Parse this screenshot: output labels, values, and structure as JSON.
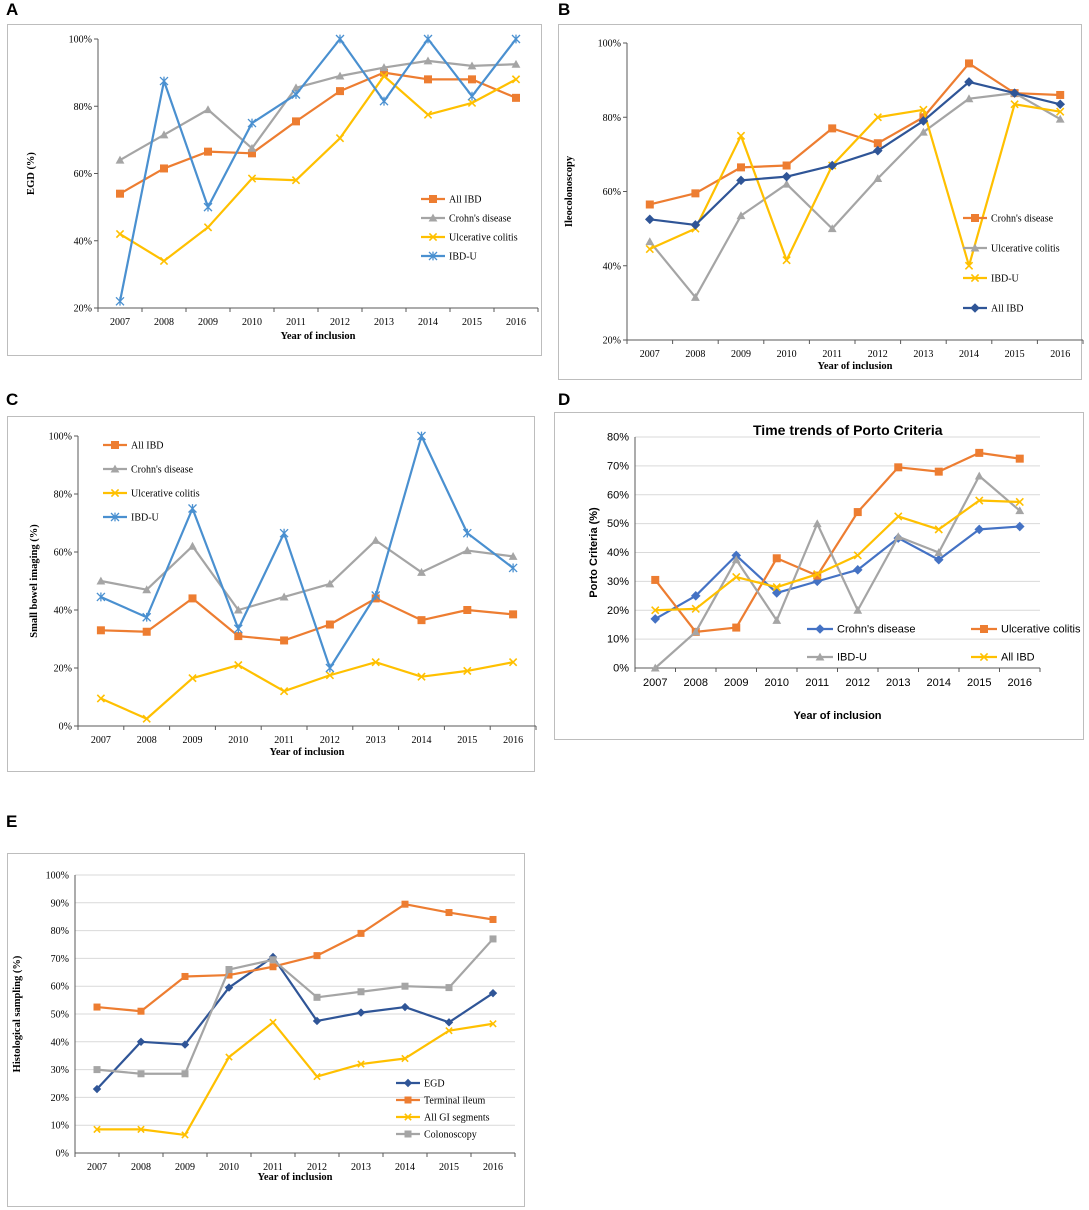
{
  "panels": [
    {
      "letter": "A"
    },
    {
      "letter": "B"
    },
    {
      "letter": "C"
    },
    {
      "letter": "D"
    },
    {
      "letter": "E"
    }
  ],
  "chart_data": [
    {
      "id": "A",
      "type": "line",
      "title": "",
      "xlabel": "Year of inclusion",
      "ylabel": "EGD (%)",
      "categories": [
        "2007",
        "2008",
        "2009",
        "2010",
        "2011",
        "2012",
        "2013",
        "2014",
        "2015",
        "2016"
      ],
      "ylim": [
        20,
        100
      ],
      "yticks": [
        "20%",
        "40%",
        "60%",
        "80%",
        "100%"
      ],
      "grid": false,
      "legend_position": "right",
      "series": [
        {
          "name": "All IBD",
          "color": "#ED7D31",
          "marker": "square",
          "values": [
            54,
            61.5,
            66.5,
            66,
            75.5,
            84.5,
            90,
            88,
            88,
            82.5
          ]
        },
        {
          "name": "Crohn's disease",
          "color": "#A5A5A5",
          "marker": "triangle",
          "values": [
            64,
            71.5,
            79,
            67.5,
            85.5,
            89,
            91.5,
            93.5,
            92,
            92.5
          ]
        },
        {
          "name": "Ulcerative colitis",
          "color": "#FFC000",
          "marker": "x",
          "values": [
            42,
            34,
            44,
            58.5,
            58,
            70.5,
            89,
            77.5,
            81,
            88
          ]
        },
        {
          "name": "IBD-U",
          "color": "#4A90D0",
          "marker": "star",
          "values": [
            22,
            87.5,
            50,
            75,
            83.5,
            100,
            81.5,
            100,
            83,
            100
          ]
        }
      ]
    },
    {
      "id": "B",
      "type": "line",
      "title": "",
      "xlabel": "Year of inclusion",
      "ylabel": "Ileocolonoscopy",
      "categories": [
        "2007",
        "2008",
        "2009",
        "2010",
        "2011",
        "2012",
        "2013",
        "2014",
        "2015",
        "2016"
      ],
      "ylim": [
        20,
        100
      ],
      "yticks": [
        "20%",
        "40%",
        "60%",
        "80%",
        "100%"
      ],
      "grid": false,
      "legend_position": "right",
      "series": [
        {
          "name": "Crohn's disease",
          "color": "#ED7D31",
          "marker": "square",
          "values": [
            56.5,
            59.5,
            66.5,
            67,
            77,
            73,
            80,
            94.5,
            86.5,
            86
          ]
        },
        {
          "name": "Ulcerative colitis",
          "color": "#A5A5A5",
          "marker": "triangle",
          "values": [
            46.5,
            31.5,
            53.5,
            62,
            50,
            63.5,
            76,
            85,
            86.5,
            79.5
          ]
        },
        {
          "name": "IBD-U",
          "color": "#FFC000",
          "marker": "x",
          "values": [
            44.5,
            50,
            75,
            41.5,
            67,
            80,
            82,
            40,
            83.5,
            81.5
          ]
        },
        {
          "name": "All IBD",
          "color": "#2F5597",
          "marker": "diamond",
          "values": [
            52.5,
            51,
            63,
            64,
            67,
            71,
            79,
            89.5,
            86.5,
            83.5
          ]
        }
      ]
    },
    {
      "id": "C",
      "type": "line",
      "title": "",
      "xlabel": "Year of inclusion",
      "ylabel": "Small bowel imaging (%)",
      "categories": [
        "2007",
        "2008",
        "2009",
        "2010",
        "2011",
        "2012",
        "2013",
        "2014",
        "2015",
        "2016"
      ],
      "ylim": [
        0,
        100
      ],
      "yticks": [
        "0%",
        "20%",
        "40%",
        "60%",
        "80%",
        "100%"
      ],
      "grid": false,
      "legend_position": "top-left",
      "series": [
        {
          "name": "All IBD",
          "color": "#ED7D31",
          "marker": "square",
          "values": [
            33,
            32.5,
            44,
            31,
            29.5,
            35,
            44,
            36.5,
            40,
            38.5
          ]
        },
        {
          "name": "Crohn's disease",
          "color": "#A5A5A5",
          "marker": "triangle",
          "values": [
            50,
            47,
            62,
            40,
            44.5,
            49,
            64,
            53,
            60.5,
            58.5
          ]
        },
        {
          "name": "Ulcerative colitis",
          "color": "#FFC000",
          "marker": "x",
          "values": [
            9.5,
            2.5,
            16.5,
            21,
            12,
            17.5,
            22,
            17,
            19,
            22
          ]
        },
        {
          "name": "IBD-U",
          "color": "#4A90D0",
          "marker": "star",
          "values": [
            44.5,
            37.5,
            75,
            33.5,
            66.5,
            20,
            45,
            100,
            66.5,
            54.5
          ]
        }
      ]
    },
    {
      "id": "D",
      "type": "line",
      "title": "Time trends of Porto Criteria",
      "xlabel": "Year of inclusion",
      "ylabel": "Porto Criteria (%)",
      "categories": [
        "2007",
        "2008",
        "2009",
        "2010",
        "2011",
        "2012",
        "2013",
        "2014",
        "2015",
        "2016"
      ],
      "ylim": [
        0,
        80
      ],
      "yticks": [
        "0%",
        "10%",
        "20%",
        "30%",
        "40%",
        "50%",
        "60%",
        "70%",
        "80%"
      ],
      "grid": true,
      "legend_position": "bottom",
      "series": [
        {
          "name": "Crohn's disease",
          "color": "#4472C4",
          "marker": "diamond",
          "values": [
            17,
            25,
            39,
            26,
            30,
            34,
            45,
            37.5,
            48,
            49
          ]
        },
        {
          "name": "Ulcerative colitis",
          "color": "#ED7D31",
          "marker": "square",
          "values": [
            30.5,
            12.5,
            14,
            38,
            32,
            54,
            69.5,
            68,
            74.5,
            72.5
          ]
        },
        {
          "name": "IBD-U",
          "color": "#A5A5A5",
          "marker": "triangle",
          "values": [
            0,
            12.5,
            37.5,
            16.5,
            50,
            20,
            45.5,
            40,
            66.5,
            54.5
          ]
        },
        {
          "name": "All IBD",
          "color": "#FFC000",
          "marker": "x",
          "values": [
            20,
            20.5,
            31.5,
            28,
            32.5,
            39,
            52.5,
            48,
            58,
            57.5
          ]
        }
      ]
    },
    {
      "id": "E",
      "type": "line",
      "title": "",
      "xlabel": "Year of inclusion",
      "ylabel": "Histological sampling (%)",
      "categories": [
        "2007",
        "2008",
        "2009",
        "2010",
        "2011",
        "2012",
        "2013",
        "2014",
        "2015",
        "2016"
      ],
      "ylim": [
        0,
        100
      ],
      "yticks": [
        "0%",
        "10%",
        "20%",
        "30%",
        "40%",
        "50%",
        "60%",
        "70%",
        "80%",
        "90%",
        "100%"
      ],
      "grid": true,
      "legend_position": "bottom-right",
      "series": [
        {
          "name": "EGD",
          "color": "#2F5597",
          "marker": "diamond",
          "values": [
            23,
            40,
            39,
            59.5,
            70.5,
            47.5,
            50.5,
            52.5,
            47,
            57.5
          ]
        },
        {
          "name": "Terminal ileum",
          "color": "#ED7D31",
          "marker": "square",
          "values": [
            52.5,
            51,
            63.5,
            64,
            67,
            71,
            79,
            89.5,
            86.5,
            84
          ]
        },
        {
          "name": "All GI segments",
          "color": "#FFC000",
          "marker": "x",
          "values": [
            8.5,
            8.5,
            6.5,
            34.5,
            47,
            27.5,
            32,
            34,
            44,
            46.5
          ]
        },
        {
          "name": "Colonoscopy",
          "color": "#A5A5A5",
          "marker": "square",
          "values": [
            30,
            28.5,
            28.5,
            66,
            69.5,
            56,
            58,
            60,
            59.5,
            77
          ]
        }
      ]
    }
  ]
}
